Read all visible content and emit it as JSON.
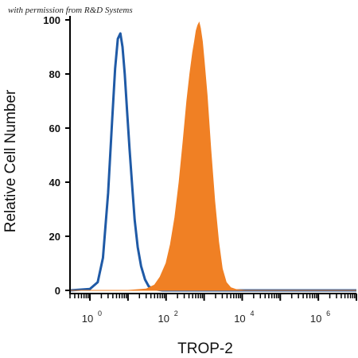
{
  "watermark": "with permission from R&D Systems",
  "chart_data": {
    "type": "area",
    "xscale": "log",
    "xlabel": "TROP-2",
    "ylabel": "Relative Cell Number",
    "xlim": [
      0.3,
      10000000
    ],
    "ylim": [
      0,
      100
    ],
    "xticks": [
      {
        "value": 1,
        "base": "10",
        "exp": "0"
      },
      {
        "value": 100,
        "base": "10",
        "exp": "2"
      },
      {
        "value": 10000,
        "base": "10",
        "exp": "4"
      },
      {
        "value": 1000000,
        "base": "10",
        "exp": "6"
      }
    ],
    "yticks": [
      0,
      20,
      40,
      60,
      80,
      100
    ],
    "series": [
      {
        "color": "#1f5aa6",
        "style": "outline",
        "points": [
          [
            0.3,
            0
          ],
          [
            1.0,
            0.5
          ],
          [
            1.6,
            3
          ],
          [
            2.2,
            12
          ],
          [
            3.0,
            36
          ],
          [
            3.8,
            62
          ],
          [
            4.6,
            82
          ],
          [
            5.4,
            93
          ],
          [
            6.3,
            95
          ],
          [
            7.2,
            90
          ],
          [
            8.2,
            80
          ],
          [
            9.5,
            66
          ],
          [
            11,
            52
          ],
          [
            13,
            38
          ],
          [
            15,
            26
          ],
          [
            18,
            16
          ],
          [
            22,
            9
          ],
          [
            28,
            4
          ],
          [
            35,
            1.5
          ],
          [
            45,
            0.5
          ],
          [
            80,
            0
          ],
          [
            10000000,
            0
          ]
        ]
      },
      {
        "color": "#f08024",
        "style": "filled",
        "points": [
          [
            0.3,
            0
          ],
          [
            10,
            0
          ],
          [
            30,
            0.5
          ],
          [
            50,
            2
          ],
          [
            70,
            5
          ],
          [
            100,
            10
          ],
          [
            130,
            17
          ],
          [
            170,
            27
          ],
          [
            220,
            40
          ],
          [
            280,
            55
          ],
          [
            350,
            70
          ],
          [
            420,
            80
          ],
          [
            500,
            88
          ],
          [
            560,
            92
          ],
          [
            620,
            96
          ],
          [
            680,
            98
          ],
          [
            740,
            99
          ],
          [
            800,
            97
          ],
          [
            900,
            92
          ],
          [
            1000,
            85
          ],
          [
            1200,
            72
          ],
          [
            1500,
            52
          ],
          [
            1900,
            33
          ],
          [
            2400,
            18
          ],
          [
            3000,
            8
          ],
          [
            3800,
            3
          ],
          [
            5000,
            1
          ],
          [
            7000,
            0.3
          ],
          [
            12000,
            0
          ],
          [
            10000000,
            0
          ]
        ]
      }
    ]
  }
}
